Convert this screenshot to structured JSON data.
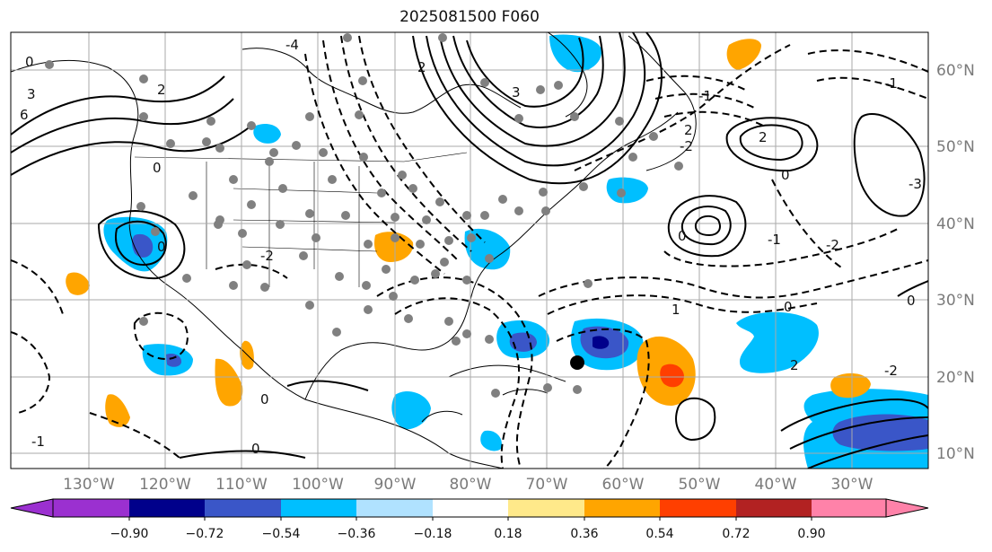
{
  "title": "2025081500 F060",
  "lat_labels": [
    "60°N",
    "50°N",
    "40°N",
    "30°N",
    "20°N",
    "10°N"
  ],
  "lon_labels": [
    "130°W",
    "120°W",
    "110°W",
    "100°W",
    "90°W",
    "80°W",
    "70°W",
    "60°W",
    "50°W",
    "40°W",
    "30°W"
  ],
  "colorbar": {
    "ticks": [
      "−0.90",
      "−0.72",
      "−0.54",
      "−0.36",
      "−0.18",
      "0.18",
      "0.36",
      "0.54",
      "0.72",
      "0.90"
    ],
    "colors": [
      "#9b30d0",
      "#00008b",
      "#3a56c8",
      "#00bfff",
      "#b0e2ff",
      "#ffffff",
      "#ffe98a",
      "#ffa500",
      "#ff3f00",
      "#b22222",
      "#ff82a9"
    ]
  },
  "contour_labels": [
    "0",
    "2",
    "3",
    "6",
    "0",
    "-2",
    "-4",
    "2",
    "3",
    "2",
    "-2",
    "0",
    "-1",
    "0",
    "0",
    "2",
    "-1",
    "-2",
    "-3",
    "0",
    "1",
    "-1",
    "0",
    "0",
    "2",
    "-2",
    "-1",
    "0"
  ]
}
